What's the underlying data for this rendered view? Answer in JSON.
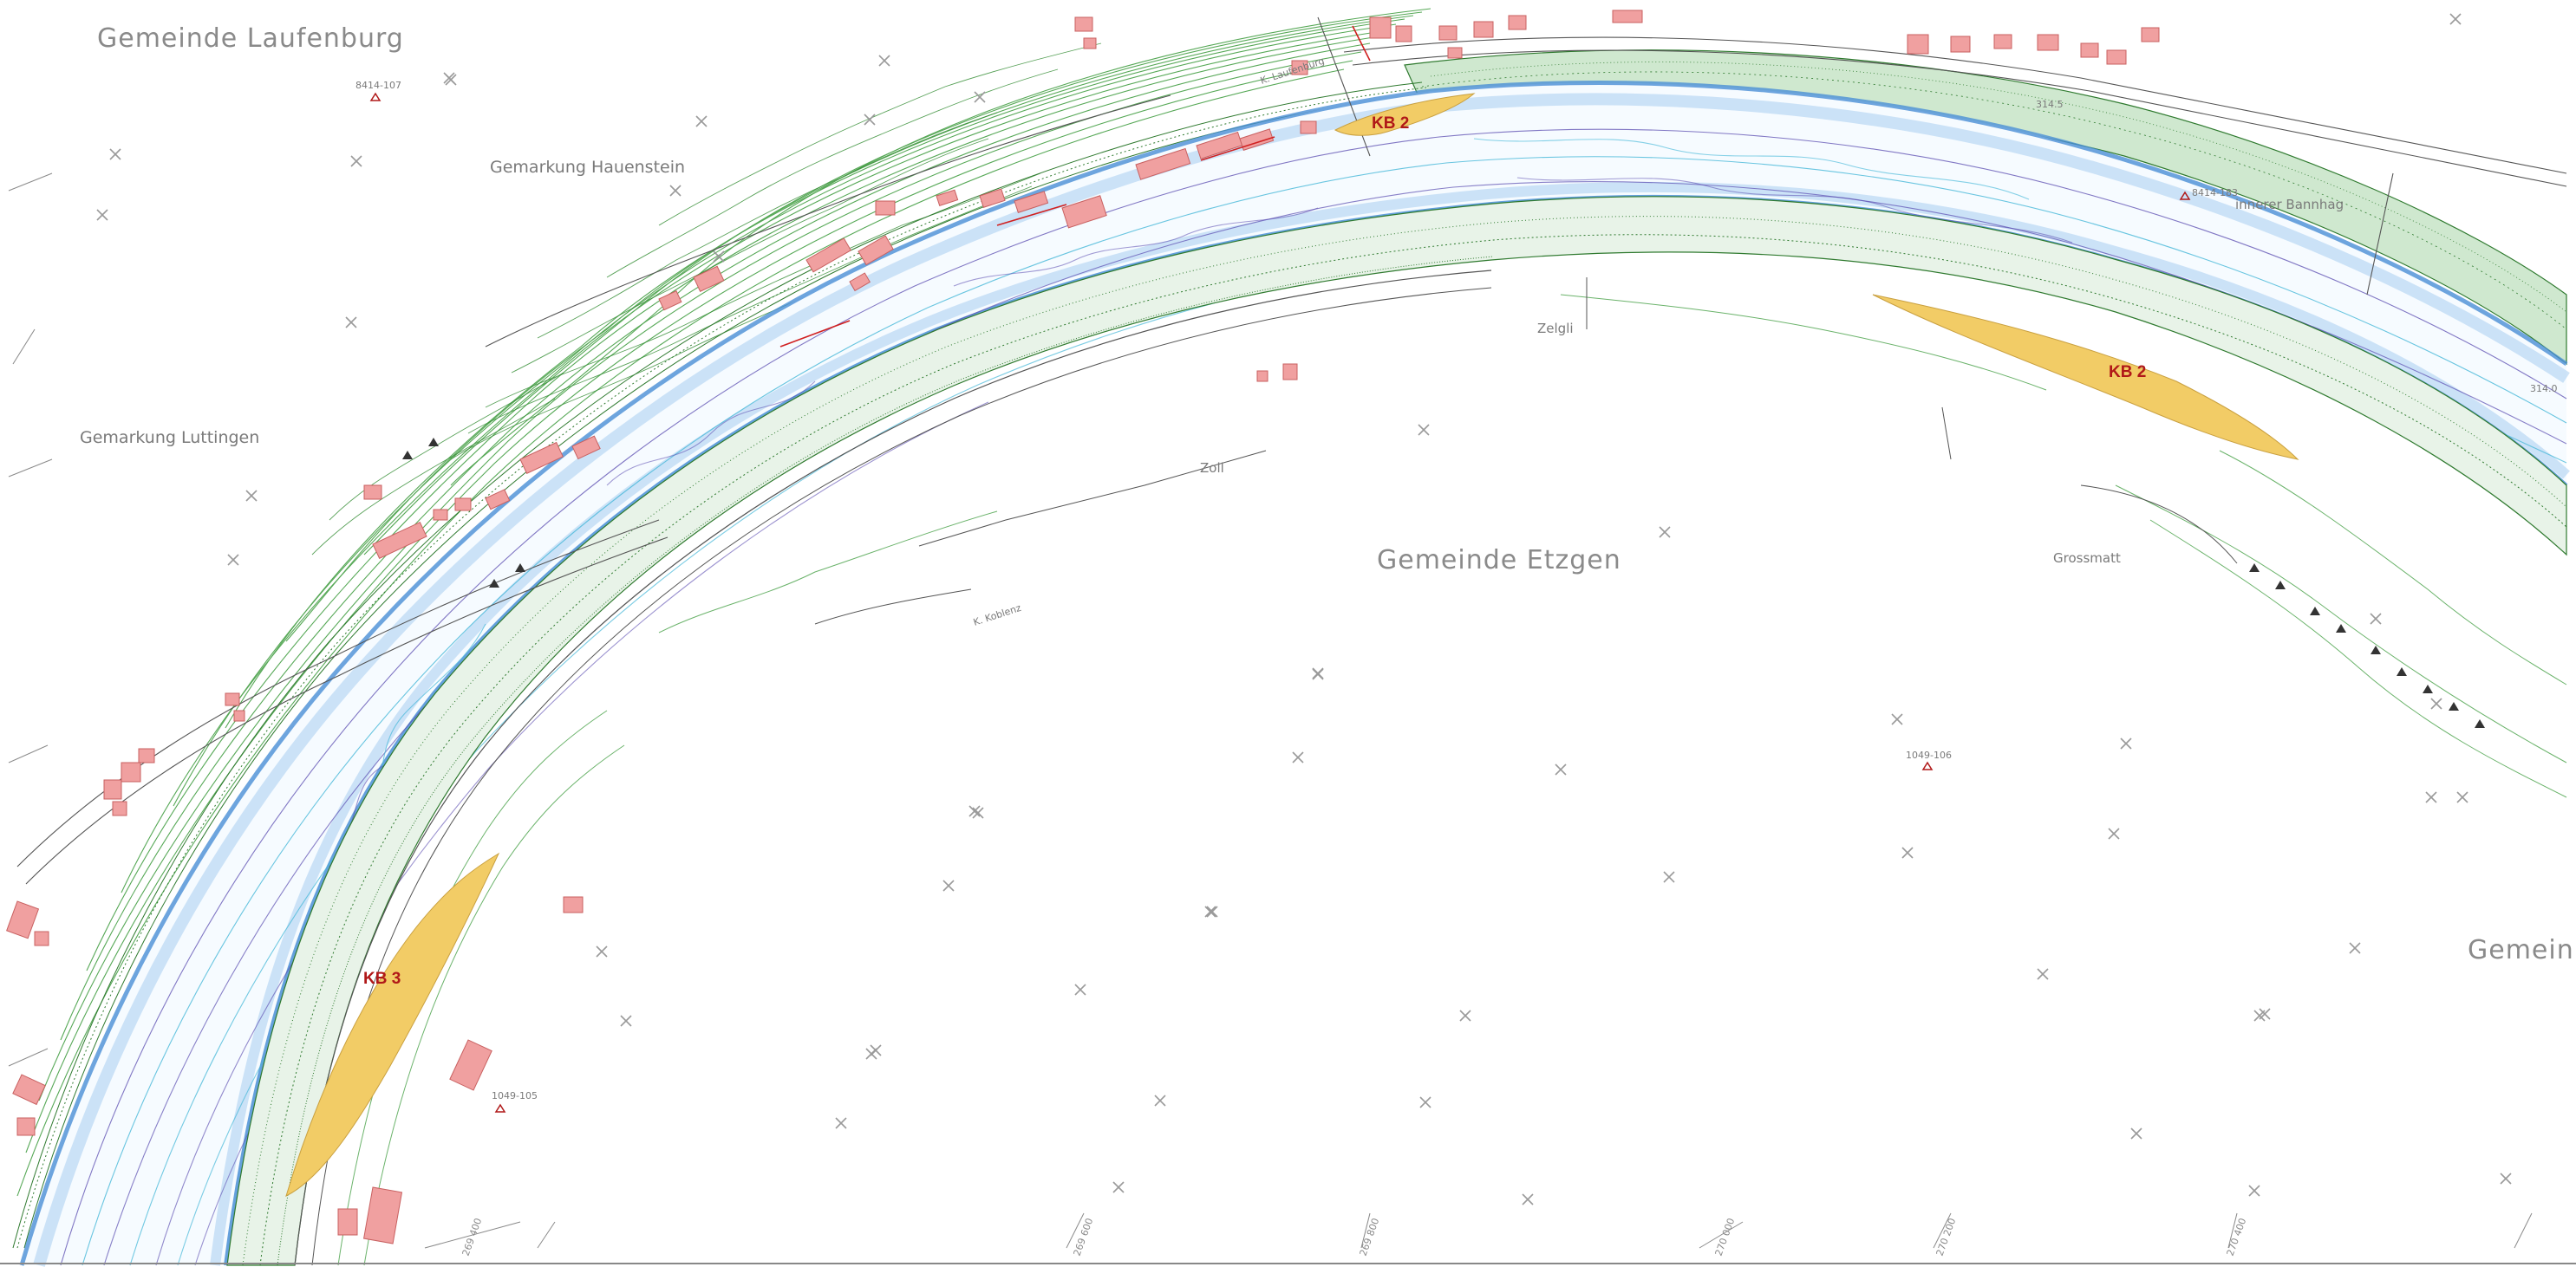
{
  "municipalities": {
    "laufenburg": "Gemeinde Laufenburg",
    "etzgen": "Gemeinde Etzgen",
    "right_edge": "Gemein"
  },
  "cadastral_areas": {
    "hauenstein": "Gemarkung Hauenstein",
    "luttingen": "Gemarkung Luttingen"
  },
  "localities": {
    "zelgli": "Zelgli",
    "zoll": "Zoll",
    "grossmatt": "Grossmatt",
    "innerer_bannhag": "innerer Bannhag"
  },
  "gravel_banks": {
    "kb2_upper": "KB 2",
    "kb2_right": "KB 2",
    "kb3": "KB 3"
  },
  "survey_points": {
    "p1": "8414-107",
    "p2": "1049-106",
    "p3": "8414-183",
    "p4": "1049-105"
  },
  "small_labels": {
    "laufenburg_km": "K. Laufenburg",
    "koblenz_km": "K. Koblenz",
    "elev_1": "314.5",
    "elev_2": "314.0"
  },
  "grid_labels": [
    "269 400",
    "269 600",
    "269 800",
    "270 000",
    "270 200",
    "270 400"
  ],
  "colors": {
    "water_main": "#4a8fd6",
    "water_light": "#a8cdf0",
    "contour_green": "#3a9a3a",
    "building": "#f0a0a0",
    "gravel": "#f2cc66",
    "depth_purple": "#5a4bb0",
    "depth_cyan": "#46b8d8"
  }
}
